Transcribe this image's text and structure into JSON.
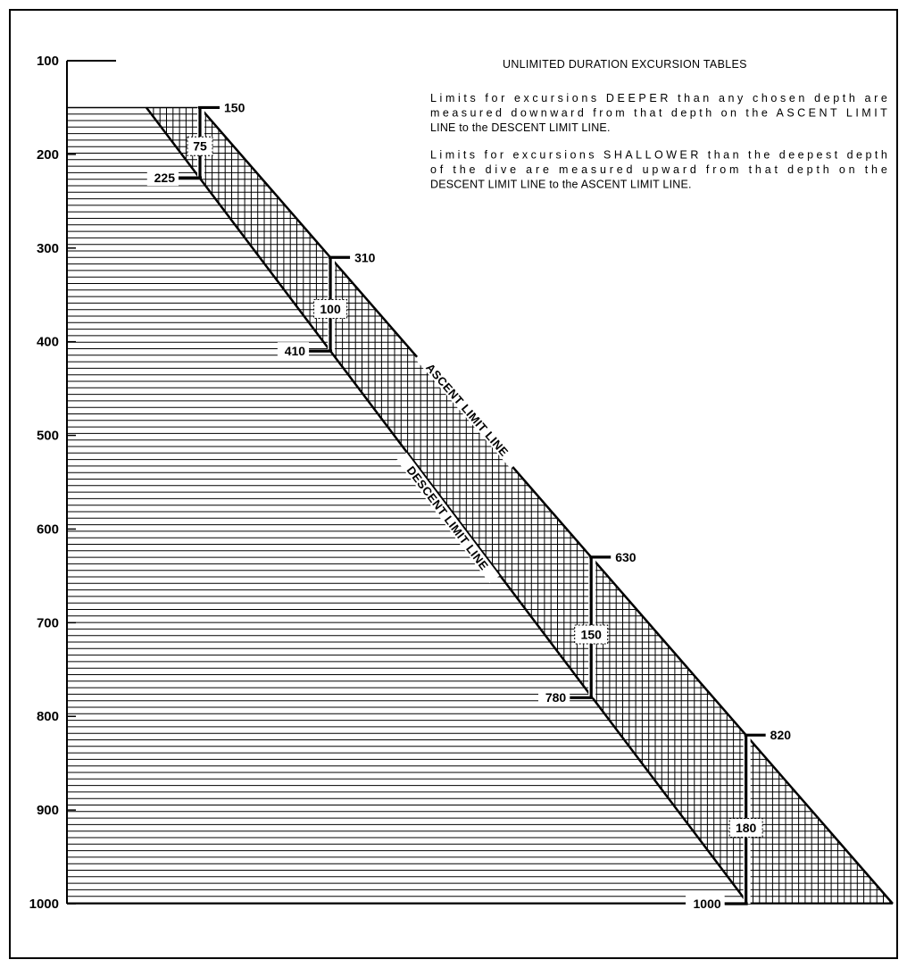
{
  "chart_data": {
    "type": "area",
    "title": "UNLIMITED DURATION EXCURSION TABLES",
    "notes": [
      [
        "Limits for excursions DEEPER than any chosen depth are",
        "measured downward from that depth on the ASCENT LIMIT",
        "LINE to the DESCENT LIMIT LINE."
      ],
      [
        "Limits for excursions SHALLOWER than the deepest depth",
        "of the dive are measured upward from that depth on the",
        "DESCENT LIMIT LINE to the ASCENT LIMIT LINE."
      ]
    ],
    "y_axis": {
      "ticks": [
        100,
        200,
        300,
        400,
        500,
        600,
        700,
        800,
        900,
        1000
      ],
      "tick_labels": [
        "100",
        "200",
        "300",
        "400",
        "500",
        "600",
        "700",
        "800",
        "900",
        "1000"
      ],
      "ylim": [
        100,
        1000
      ],
      "inverted": true
    },
    "series": [
      {
        "name": "ASCENT LIMIT LINE",
        "depths": [
          150,
          1000
        ]
      },
      {
        "name": "DESCENT LIMIT LINE",
        "depths": [
          150,
          1000
        ]
      }
    ],
    "excursions": [
      {
        "from": 150,
        "to": 225,
        "range": 75,
        "from_label": "150",
        "to_label": "225",
        "range_label": "75"
      },
      {
        "from": 310,
        "to": 410,
        "range": 100,
        "from_label": "310",
        "to_label": "410",
        "range_label": "100"
      },
      {
        "from": 630,
        "to": 780,
        "range": 150,
        "from_label": "630",
        "to_label": "780",
        "range_label": "150"
      },
      {
        "from": 820,
        "to": 1000,
        "range": 180,
        "from_label": "820",
        "to_label": "1000",
        "range_label": "180"
      }
    ],
    "grid": false
  }
}
